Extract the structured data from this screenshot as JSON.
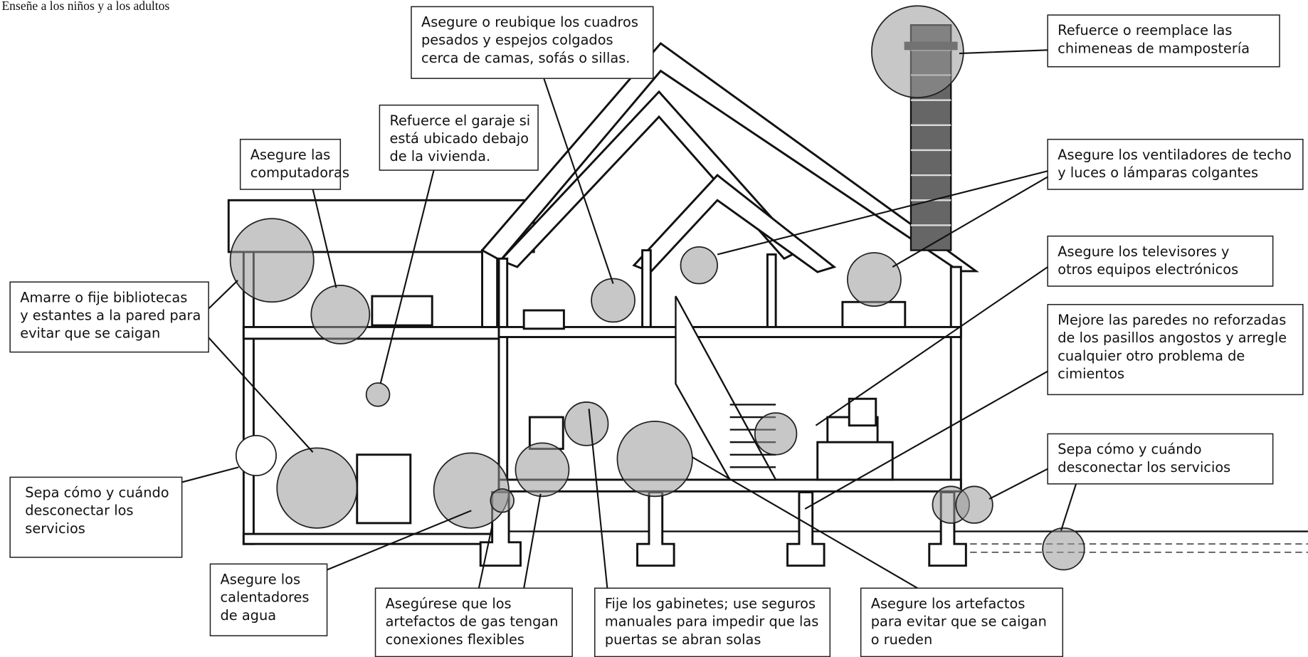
{
  "header": {
    "text": "Enseñe a los niños y a los adultos"
  },
  "callouts": [
    {
      "lines": [
        "Asegure o reubique los cuadros",
        "pesados y espejos colgados",
        "cerca de camas, sofás o sillas."
      ]
    },
    {
      "lines": [
        "Refuerce el garaje si",
        "está ubicado debajo",
        "de la vivienda."
      ]
    },
    {
      "lines": [
        "Asegure las",
        "computadoras"
      ]
    },
    {
      "lines": [
        "Refuerce o reemplace las",
        "chimeneas de mampostería"
      ]
    },
    {
      "lines": [
        "Asegure los ventiladores de techo",
        "y luces o lámparas colgantes"
      ]
    },
    {
      "lines": [
        "Asegure los televisores y",
        "otros equipos electrónicos"
      ]
    },
    {
      "lines": [
        "Mejore las paredes no reforzadas",
        "de los pasillos angostos y arregle",
        "cualquier otro problema de",
        "cimientos"
      ]
    },
    {
      "lines": [
        "Sepa cómo y cuándo",
        "desconectar los servicios"
      ]
    },
    {
      "lines": [
        "Amarre o fije bibliotecas",
        "y estantes a la pared para",
        "evitar que se caigan"
      ]
    },
    {
      "lines": [
        "Sepa cómo y cuándo",
        "desconectar los",
        "servicios"
      ]
    },
    {
      "lines": [
        "Asegure los",
        "calentadores",
        "de agua"
      ]
    },
    {
      "lines": [
        "Asegúrese que los",
        "artefactos de gas tengan",
        "conexiones flexibles"
      ]
    },
    {
      "lines": [
        "Fije los gabinetes; use seguros",
        "manuales para impedir que las",
        "puertas se abran solas"
      ]
    },
    {
      "lines": [
        "Asegure los artefactos",
        "para evitar que se caigan",
        "o rueden"
      ]
    }
  ]
}
